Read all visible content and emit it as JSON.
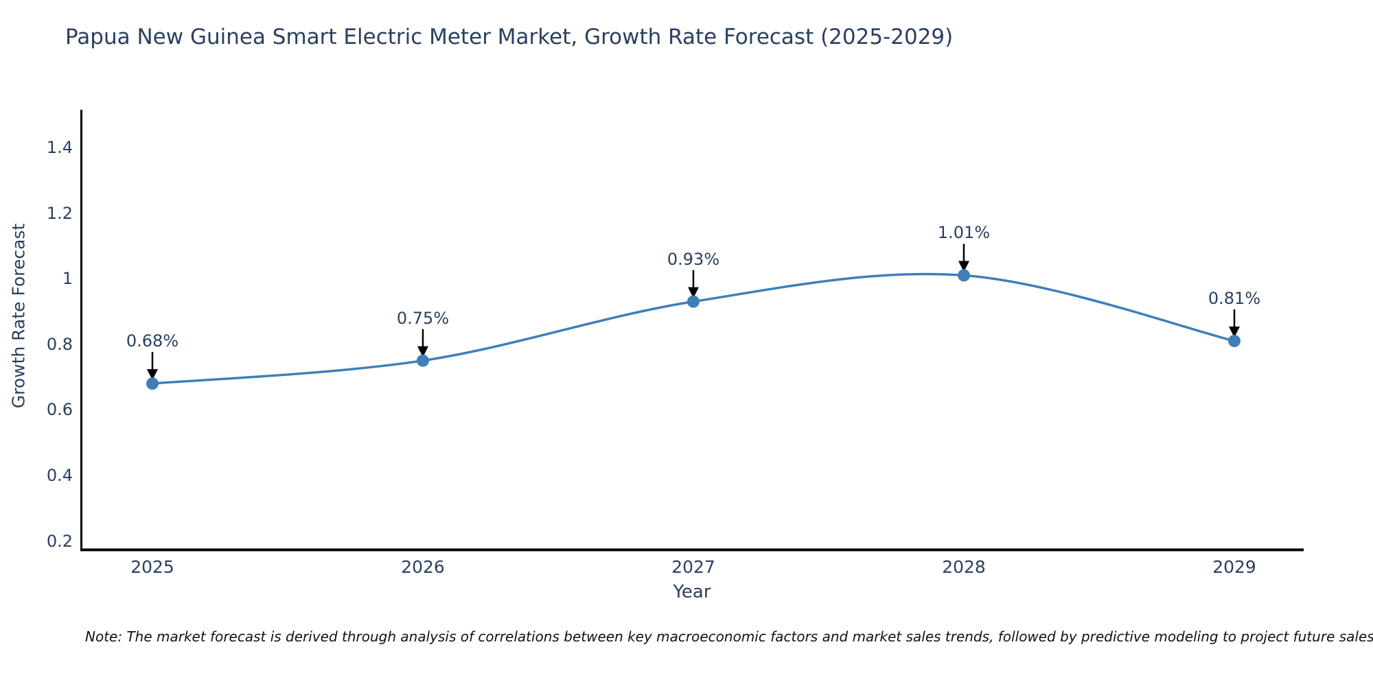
{
  "title": "Papua New Guinea Smart Electric Meter Market, Growth Rate Forecast (2025-2029)",
  "chart_data": {
    "type": "line",
    "line_shape": "spline",
    "x": [
      "2025",
      "2026",
      "2027",
      "2028",
      "2029"
    ],
    "y": [
      0.68,
      0.75,
      0.93,
      1.01,
      0.81
    ],
    "point_labels": [
      "0.68%",
      "0.75%",
      "0.93%",
      "1.01%",
      "0.81%"
    ],
    "title": "Papua New Guinea Smart Electric Meter Market, Growth Rate Forecast (2025-2029)",
    "xlabel": "Year",
    "ylabel": "Growth Rate Forecast",
    "ytick_labels": [
      "0.2",
      "0.4",
      "0.6",
      "0.8",
      "1",
      "1.2",
      "1.4"
    ],
    "yticks": [
      0.2,
      0.4,
      0.6,
      0.8,
      1.0,
      1.2,
      1.4
    ],
    "ylim": [
      0.17,
      1.52
    ],
    "grid": false,
    "legend_position": "none",
    "line_color": "#3f7fb8",
    "marker_color": "#3f7fb8",
    "arrow_color": "#000000",
    "axis_color": "#000000",
    "text_color": "#2a3f5f"
  },
  "note": "Note: The market forecast is derived through analysis of correlations between key macroeconomic factors and market sales trends, followed by predictive modeling to project future sales"
}
